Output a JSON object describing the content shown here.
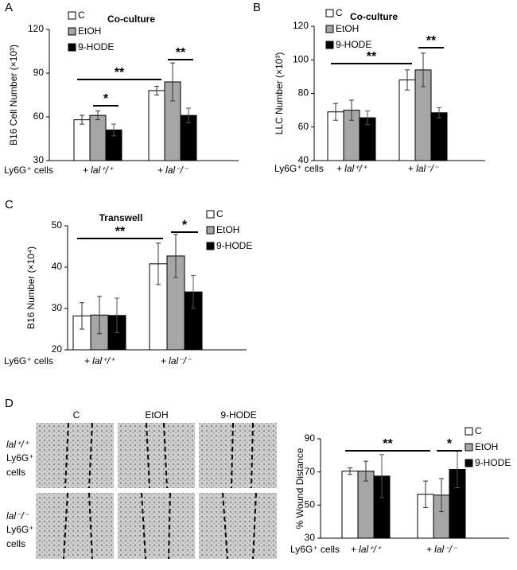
{
  "panel_labels": [
    "A",
    "B",
    "C",
    "D"
  ],
  "wound_images": {
    "columns": [
      "C",
      "EtOH",
      "9-HODE"
    ],
    "rows": [
      [
        "lal⁺/⁺",
        "Ly6G⁺",
        "cells"
      ],
      [
        "lal⁻/⁻",
        "Ly6G⁺",
        "cells"
      ]
    ]
  },
  "chart_data": [
    {
      "type": "bar",
      "title": "Co-culture",
      "y_label": "B16 Cell Number (×10³)",
      "row_label": "Ly6G⁺ cells",
      "categories": [
        "+ lal⁺/⁺",
        "+ lal⁻/⁻"
      ],
      "series": [
        {
          "name": "C",
          "color": "#ffffff",
          "values": [
            58,
            78
          ],
          "errors": [
            3,
            3
          ]
        },
        {
          "name": "EtOH",
          "color": "#a6a6a6",
          "values": [
            61,
            84
          ],
          "errors": [
            3,
            13
          ]
        },
        {
          "name": "9-HODE",
          "color": "#000000",
          "values": [
            51,
            61
          ],
          "errors": [
            4,
            5
          ]
        }
      ],
      "ylim": [
        30,
        120
      ],
      "yticks": [
        30,
        60,
        90,
        120
      ],
      "annotations": [
        "*",
        "**",
        "**"
      ]
    },
    {
      "type": "bar",
      "title": "Co-culture",
      "y_label": "LLC Number (×10³)",
      "row_label": "Ly6G⁺ cells",
      "categories": [
        "+ lal⁺/⁺",
        "+ lal⁻/⁻"
      ],
      "series": [
        {
          "name": "C",
          "color": "#ffffff",
          "values": [
            69,
            88
          ],
          "errors": [
            5,
            6
          ]
        },
        {
          "name": "EtOH",
          "color": "#a6a6a6",
          "values": [
            70,
            94
          ],
          "errors": [
            6,
            10
          ]
        },
        {
          "name": "9-HODE",
          "color": "#000000",
          "values": [
            65.5,
            68.5
          ],
          "errors": [
            4,
            3
          ]
        }
      ],
      "ylim": [
        40,
        120
      ],
      "yticks": [
        40,
        60,
        80,
        100,
        120
      ],
      "annotations": [
        "**",
        "**"
      ]
    },
    {
      "type": "bar",
      "title": "Transwell",
      "y_label": "B16 Number (×10⁴)",
      "row_label": "Ly6G⁺ cells",
      "categories": [
        "+ lal⁺/⁺",
        "+ lal⁻/⁻"
      ],
      "series": [
        {
          "name": "C",
          "color": "#ffffff",
          "values": [
            28.2,
            40.8
          ],
          "errors": [
            3.2,
            5
          ]
        },
        {
          "name": "EtOH",
          "color": "#a6a6a6",
          "values": [
            28.4,
            42.7
          ],
          "errors": [
            4.5,
            5.2
          ]
        },
        {
          "name": "9-HODE",
          "color": "#000000",
          "values": [
            28.3,
            34
          ],
          "errors": [
            4.2,
            4
          ]
        }
      ],
      "ylim": [
        20,
        50
      ],
      "yticks": [
        20,
        30,
        40,
        50
      ],
      "annotations": [
        "**",
        "*"
      ]
    },
    {
      "type": "bar",
      "y_label": "% Wound Distance",
      "row_label": "Ly6G⁺ cells",
      "categories": [
        "+ lal⁺/⁺",
        "+ lal⁻/⁻"
      ],
      "series": [
        {
          "name": "C",
          "color": "#ffffff",
          "values": [
            70.5,
            56.5
          ],
          "errors": [
            2,
            8
          ]
        },
        {
          "name": "EtOH",
          "color": "#a6a6a6",
          "values": [
            70.5,
            56
          ],
          "errors": [
            6,
            10
          ]
        },
        {
          "name": "9-HODE",
          "color": "#000000",
          "values": [
            67.5,
            71.5
          ],
          "errors": [
            13,
            11
          ]
        }
      ],
      "ylim": [
        30,
        90
      ],
      "yticks": [
        30,
        50,
        70,
        90
      ],
      "annotations": [
        "**",
        "*"
      ]
    }
  ]
}
